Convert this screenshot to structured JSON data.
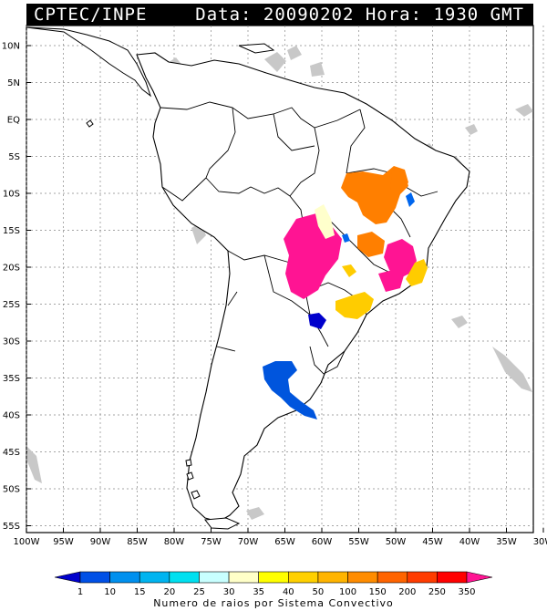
{
  "header": {
    "source": "CPTEC/INPE",
    "stamp": "Data: 20090202 Hora: 1930 GMT"
  },
  "map": {
    "lat_labels": [
      "10N",
      "5N",
      "EQ",
      "5S",
      "10S",
      "15S",
      "20S",
      "25S",
      "30S",
      "35S",
      "40S",
      "45S",
      "50S",
      "55S"
    ],
    "lon_labels": [
      "100W",
      "95W",
      "90W",
      "85W",
      "80W",
      "75W",
      "70W",
      "65W",
      "60W",
      "55W",
      "50W",
      "45W",
      "40W",
      "35W",
      "30W"
    ]
  },
  "legend": {
    "title": "Numero de raios por Sistema Convectivo",
    "ticks": [
      "1",
      "10",
      "15",
      "20",
      "25",
      "30",
      "35",
      "40",
      "50",
      "100",
      "150",
      "200",
      "250",
      "350"
    ],
    "colors": [
      "#0000cc",
      "#0050e6",
      "#0090ee",
      "#00b4f0",
      "#00e0f0",
      "#c8ffff",
      "#ffffc8",
      "#ffff00",
      "#ffd000",
      "#ffb400",
      "#ff8c00",
      "#ff6400",
      "#ff3c00",
      "#ff0000",
      "#ff1493"
    ]
  }
}
